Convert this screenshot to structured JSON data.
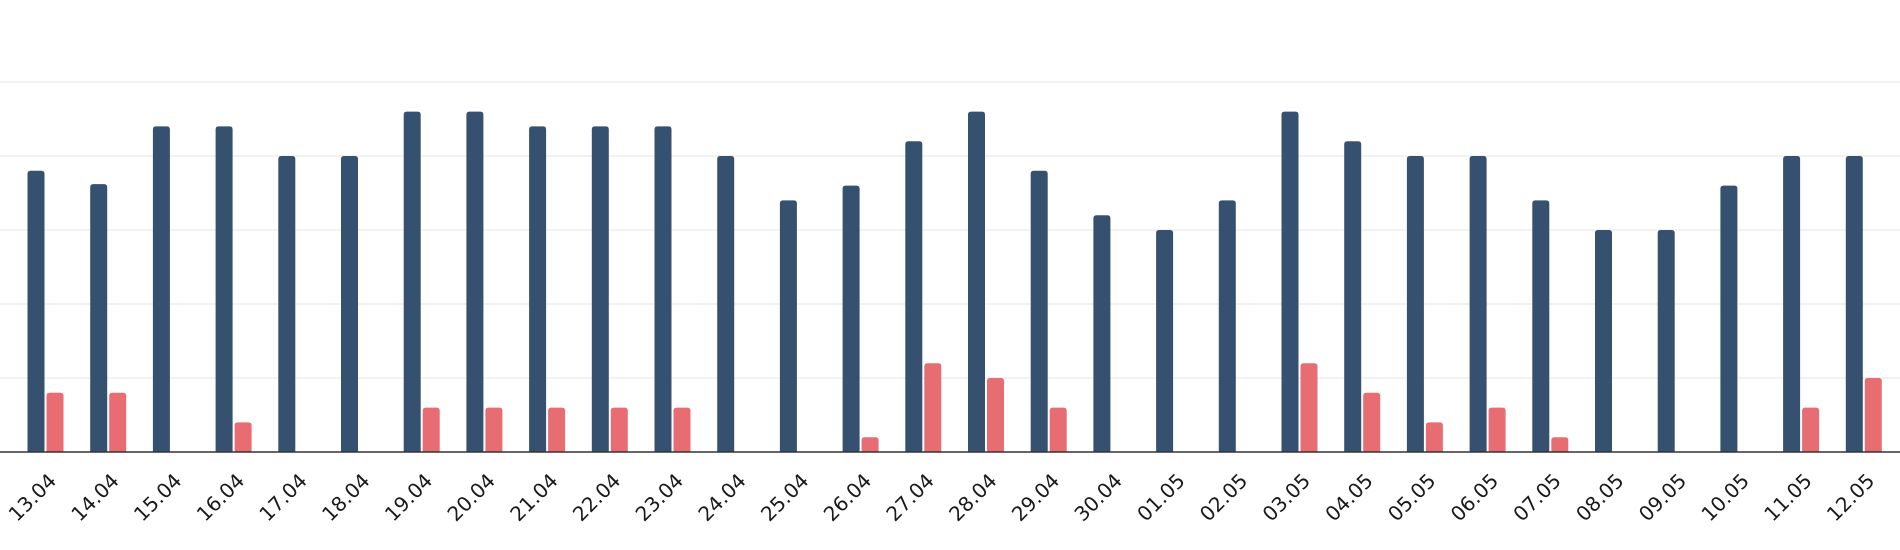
{
  "chart_data": {
    "type": "bar",
    "title": "",
    "xlabel": "",
    "ylabel": "",
    "ylim": [
      0,
      25
    ],
    "grid": true,
    "legend": "none",
    "categories": [
      "13.04",
      "14.04",
      "15.04",
      "16.04",
      "17.04",
      "18.04",
      "19.04",
      "20.04",
      "21.04",
      "22.04",
      "23.04",
      "24.04",
      "25.04",
      "26.04",
      "27.04",
      "28.04",
      "29.04",
      "30.04",
      "01.05",
      "02.05",
      "03.05",
      "04.05",
      "05.05",
      "06.05",
      "07.05",
      "08.05",
      "09.05",
      "10.05",
      "11.05",
      "12.05"
    ],
    "series": [
      {
        "color": "#36506f",
        "values": [
          19,
          18.1,
          22,
          22,
          20,
          20,
          23,
          23,
          22,
          22,
          22,
          20,
          17,
          18,
          21,
          23,
          19,
          16,
          15,
          17,
          23,
          21,
          20,
          20,
          17,
          15,
          15,
          18,
          20,
          20
        ]
      },
      {
        "color": "#e86d72",
        "values": [
          4,
          4,
          0,
          2,
          0,
          0,
          3,
          3,
          3,
          3,
          3,
          0,
          0,
          1,
          6,
          5,
          3,
          0,
          0,
          0,
          6,
          4,
          2,
          3,
          1,
          0,
          0,
          0,
          3,
          5
        ]
      }
    ]
  }
}
